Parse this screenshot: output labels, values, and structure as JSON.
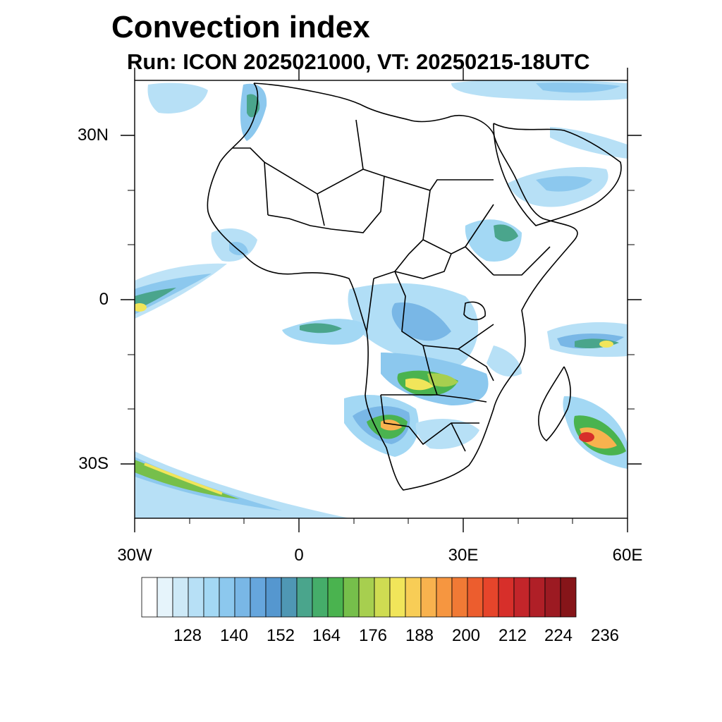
{
  "title": "Convection index",
  "subtitle": "Run: ICON 2025021000,  VT: 20250215-18UTC",
  "axes": {
    "x_ticks": [
      "30W",
      "0",
      "30E",
      "60E"
    ],
    "y_ticks": [
      "30N",
      "0",
      "30S"
    ]
  },
  "colorbar": {
    "colors": [
      "#ffffff",
      "#e6f4fb",
      "#cde9f7",
      "#b7e0f6",
      "#a3d8f4",
      "#8cc8ee",
      "#79b7e6",
      "#66a6dd",
      "#5597cf",
      "#4f97b4",
      "#4aa58c",
      "#45ad6a",
      "#4ab34f",
      "#76bf4b",
      "#a7cf4f",
      "#cfdc52",
      "#f1e55a",
      "#f8cd56",
      "#f8b24e",
      "#f69640",
      "#f17a35",
      "#ec5d2e",
      "#e6452b",
      "#d72f2a",
      "#c3252a",
      "#b01f27",
      "#9c1a22",
      "#861519"
    ],
    "labels": [
      "128",
      "140",
      "152",
      "164",
      "176",
      "188",
      "200",
      "212",
      "224",
      "236"
    ]
  }
}
